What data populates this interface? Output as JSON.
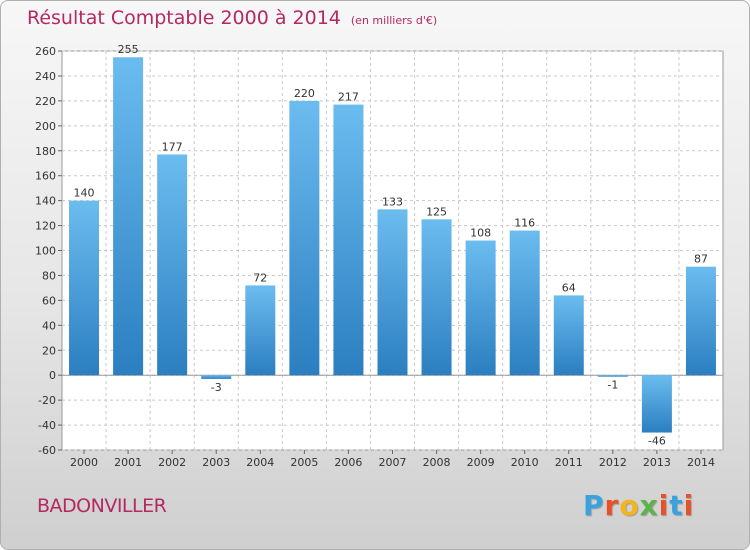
{
  "header": {
    "title": "Résultat Comptable 2000 à 2014",
    "subtitle": "(en milliers d'€)"
  },
  "footer": {
    "commune": "BADONVILLER",
    "brand": [
      "P",
      "r",
      "o",
      "x",
      "i",
      "t",
      "i"
    ],
    "brand_colors": [
      "#3aa3de",
      "#e8502a",
      "#f2b51c",
      "#5db24a",
      "#e8502a",
      "#3aa3de",
      "#e8502a"
    ]
  },
  "chart_data": {
    "type": "bar",
    "categories": [
      "2000",
      "2001",
      "2002",
      "2003",
      "2004",
      "2005",
      "2006",
      "2007",
      "2008",
      "2009",
      "2010",
      "2011",
      "2012",
      "2013",
      "2014"
    ],
    "values": [
      140,
      255,
      177,
      -3,
      72,
      220,
      217,
      133,
      125,
      108,
      116,
      64,
      -1,
      -46,
      87
    ],
    "value_labels": [
      "140",
      "255",
      "177",
      "-3",
      "72",
      "220",
      "217",
      "133",
      "125",
      "108",
      "116",
      "64",
      "-1",
      "-46",
      "87"
    ],
    "ylim": [
      -60,
      260
    ],
    "yticks": [
      -60,
      -40,
      -20,
      0,
      20,
      40,
      60,
      80,
      100,
      120,
      140,
      160,
      180,
      200,
      220,
      240,
      260
    ],
    "ytick_labels": [
      "-60",
      "-40",
      "-20",
      "0",
      "20",
      "40",
      "60",
      "80",
      "100",
      "120",
      "140",
      "160",
      "180",
      "200",
      "220",
      "240",
      "260"
    ],
    "grid": true,
    "bar_color_light": "#6bbcef",
    "bar_color_dark": "#2b7fc0"
  }
}
